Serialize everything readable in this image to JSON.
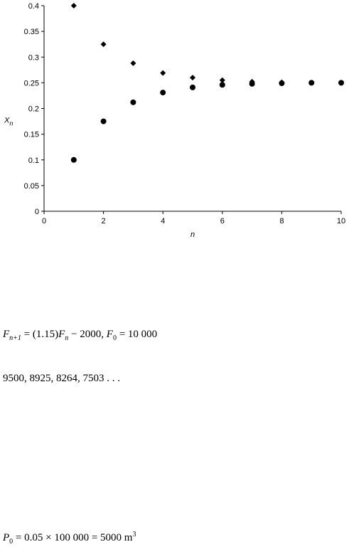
{
  "chart_data": {
    "type": "scatter",
    "x_label": "n",
    "y_label": [
      {
        "text": "X",
        "italic": true
      },
      {
        "text": "n",
        "italic": true,
        "sub": true
      }
    ],
    "xlim": [
      0,
      10
    ],
    "xticks": [
      0,
      2,
      4,
      6,
      8,
      10
    ],
    "ylim": [
      0,
      0.4
    ],
    "yticks": [
      0,
      0.05,
      0.1,
      0.15,
      0.2,
      0.25,
      0.3,
      0.35,
      0.4
    ],
    "series": [
      {
        "marker": "diamond",
        "color": "#000000",
        "x": [
          1,
          2,
          3,
          4,
          5,
          6,
          7,
          8,
          9,
          10
        ],
        "values": [
          0.4,
          0.325,
          0.288,
          0.269,
          0.26,
          0.255,
          0.252,
          0.251,
          0.25,
          0.25
        ]
      },
      {
        "marker": "circle",
        "color": "#000000",
        "x": [
          1,
          2,
          3,
          4,
          5,
          6,
          7,
          8,
          9,
          10
        ],
        "values": [
          0.1,
          0.175,
          0.212,
          0.231,
          0.241,
          0.246,
          0.248,
          0.249,
          0.25,
          0.25
        ]
      }
    ]
  },
  "equations": [
    [
      {
        "text": "F",
        "italic": true
      },
      {
        "text": "n+1",
        "italic": true,
        "sub": true
      },
      {
        "text": " = (1.15)"
      },
      {
        "text": "F",
        "italic": true
      },
      {
        "text": "n",
        "italic": true,
        "sub": true
      },
      {
        "text": " − 2000, "
      },
      {
        "text": "F",
        "italic": true
      },
      {
        "text": "0",
        "sub": true
      },
      {
        "text": " = 10 000"
      }
    ],
    [
      {
        "text": "9500, 8925, 8264, 7503 . . ."
      }
    ],
    [
      {
        "text": "P",
        "italic": true
      },
      {
        "text": "0",
        "sub": true
      },
      {
        "text": " = 0.05 × 100 000 = 5000 m"
      },
      {
        "text": "3",
        "sup": true
      }
    ]
  ]
}
